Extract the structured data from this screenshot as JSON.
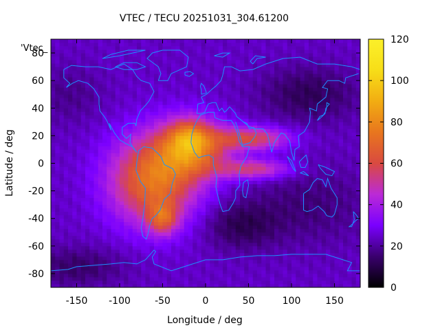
{
  "chart_data": {
    "type": "heatmap",
    "title": "VTEC / TECU 20251031_304.61200",
    "xlabel": "Longitude / deg",
    "ylabel": "Latitude / deg",
    "series_label": "'Vtec_",
    "xlim": [
      -180,
      180
    ],
    "ylim": [
      -90,
      90
    ],
    "xticks": [
      -150,
      -100,
      -50,
      0,
      50,
      100,
      150
    ],
    "yticks": [
      -80,
      -60,
      -40,
      -20,
      0,
      20,
      40,
      60,
      80
    ],
    "colorbar": {
      "min": 0,
      "max": 120,
      "ticks": [
        0,
        20,
        40,
        60,
        80,
        100,
        120
      ]
    },
    "colormap": [
      "#000000",
      "#3a006e",
      "#7a00ff",
      "#bb2ad6",
      "#d94a40",
      "#e8761e",
      "#f2ad12",
      "#f7de18",
      "#fbf02a"
    ],
    "coastline_color": "#1e90ff",
    "background_level": 24,
    "features": [
      {
        "name": "south-american-crest",
        "lon": -60,
        "lat": -12,
        "sx": 36,
        "sy": 22,
        "amp": 50
      },
      {
        "name": "african-crest",
        "lon": -15,
        "lat": 12,
        "sx": 28,
        "sy": 14,
        "amp": 48
      },
      {
        "name": "north-crest-core",
        "lon": -20,
        "lat": 20,
        "sx": 14,
        "sy": 8,
        "amp": 18
      },
      {
        "name": "southern-extension",
        "lon": -50,
        "lat": -40,
        "sx": 12,
        "sy": 8,
        "amp": 30
      },
      {
        "name": "northern-arm",
        "lon": 55,
        "lat": 18,
        "sx": 30,
        "sy": 6,
        "amp": 34
      },
      {
        "name": "southern-arm",
        "lon": 55,
        "lat": -4,
        "sx": 30,
        "sy": 5,
        "amp": 30
      },
      {
        "name": "high-latitude-low-ne",
        "lon": 120,
        "lat": 50,
        "sx": 40,
        "sy": 14,
        "amp": -12
      },
      {
        "name": "pacific-south-low",
        "lon": 120,
        "lat": -30,
        "sx": 50,
        "sy": 20,
        "amp": -8
      },
      {
        "name": "indian-ocean-low",
        "lon": 40,
        "lat": -45,
        "sx": 30,
        "sy": 12,
        "amp": -12
      },
      {
        "name": "north-pacific-low",
        "lon": -160,
        "lat": 50,
        "sx": 30,
        "sy": 15,
        "amp": -6
      },
      {
        "name": "antarctic-low",
        "lon": -150,
        "lat": -75,
        "sx": 40,
        "sy": 10,
        "amp": -10
      }
    ]
  }
}
